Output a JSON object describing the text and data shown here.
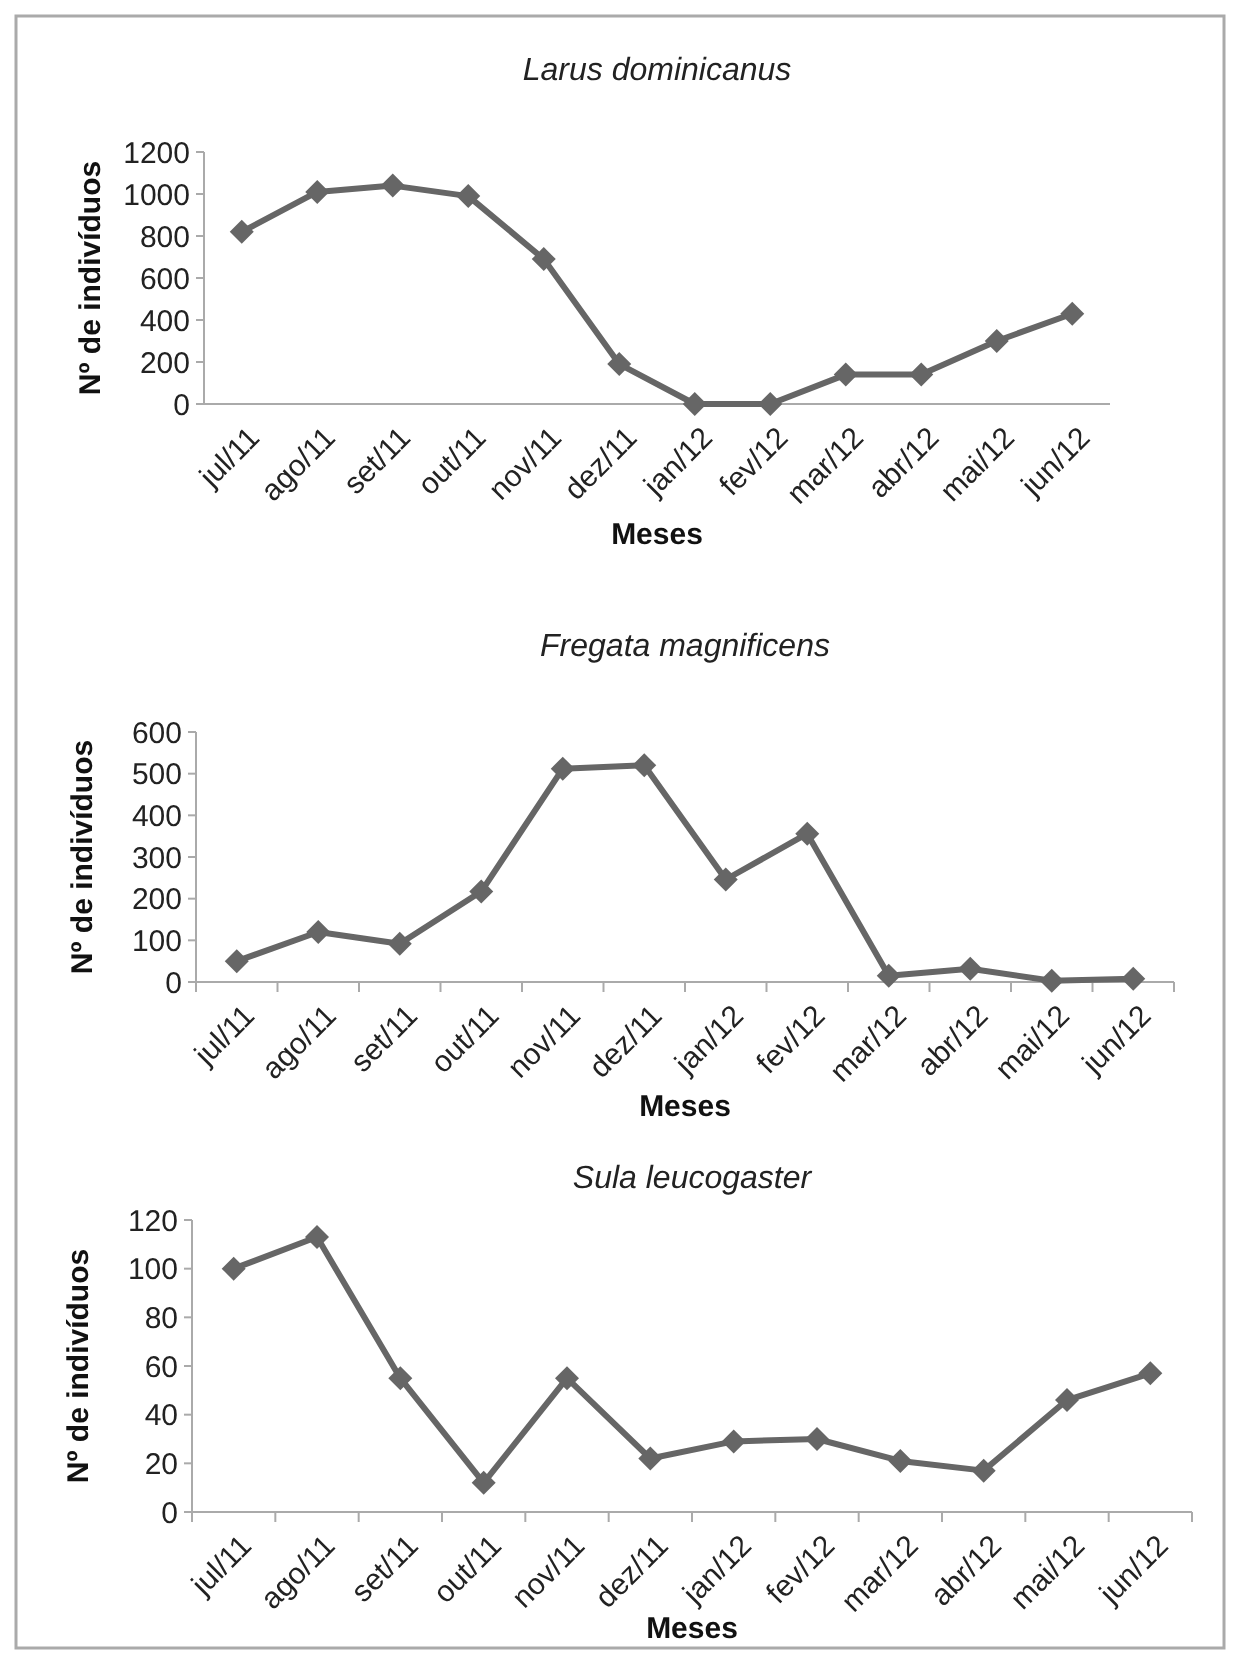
{
  "chart_data": [
    {
      "type": "line",
      "title": "Larus dominicanus",
      "xlabel": "Meses",
      "ylabel": "Nº de indivíduos",
      "categories": [
        "jul/11",
        "ago/11",
        "set/11",
        "out/11",
        "nov/11",
        "dez/11",
        "jan/12",
        "fev/12",
        "mar/12",
        "abr/12",
        "mai/12",
        "jun/12"
      ],
      "series": [
        {
          "color": "#666666",
          "values": [
            820,
            1010,
            1040,
            990,
            690,
            190,
            0,
            0,
            140,
            140,
            300,
            430
          ]
        }
      ],
      "ylim": [
        0,
        1200
      ],
      "yticks": [
        0,
        200,
        400,
        600,
        800,
        1000,
        1200
      ],
      "marker": "diamond"
    },
    {
      "type": "line",
      "title": "Fregata magnificens",
      "xlabel": "Meses",
      "ylabel": "Nº de indivíduos",
      "categories": [
        "jul/11",
        "ago/11",
        "set/11",
        "out/11",
        "nov/11",
        "dez/11",
        "jan/12",
        "fev/12",
        "mar/12",
        "abr/12",
        "mai/12",
        "jun/12"
      ],
      "series": [
        {
          "color": "#666666",
          "values": [
            50,
            120,
            92,
            217,
            512,
            520,
            246,
            356,
            15,
            32,
            3,
            8
          ]
        }
      ],
      "ylim": [
        0,
        600
      ],
      "yticks": [
        0,
        100,
        200,
        300,
        400,
        500,
        600
      ],
      "marker": "diamond"
    },
    {
      "type": "line",
      "title": "Sula leucogaster",
      "xlabel": "Meses",
      "ylabel": "Nº de indivíduos",
      "categories": [
        "jul/11",
        "ago/11",
        "set/11",
        "out/11",
        "nov/11",
        "dez/11",
        "jan/12",
        "fev/12",
        "mar/12",
        "abr/12",
        "mai/12",
        "jun/12"
      ],
      "series": [
        {
          "color": "#666666",
          "values": [
            100,
            113,
            55,
            12,
            55,
            22,
            29,
            30,
            21,
            17,
            46,
            57
          ]
        }
      ],
      "ylim": [
        0,
        120
      ],
      "yticks": [
        0,
        20,
        40,
        60,
        80,
        100,
        120
      ],
      "marker": "diamond"
    }
  ]
}
